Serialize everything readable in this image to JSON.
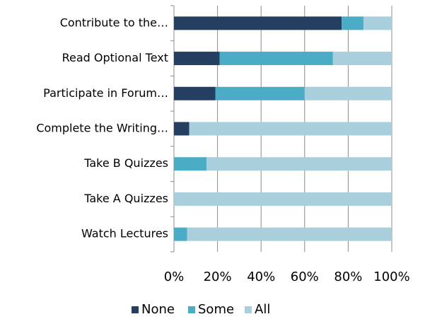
{
  "chart_data": {
    "type": "stacked_barh",
    "categories": [
      "Contribute to the…",
      "Read Optional Text",
      "Participate in Forum…",
      "Complete the Writing…",
      "Take B Quizzes",
      "Take A Quizzes",
      "Watch Lectures"
    ],
    "series": [
      {
        "name": "None",
        "color": "#243f60",
        "values": [
          77,
          21,
          19,
          7,
          0,
          0,
          0
        ]
      },
      {
        "name": "Some",
        "color": "#4bacc6",
        "values": [
          10,
          52,
          41,
          0,
          15,
          0,
          6
        ]
      },
      {
        "name": "All",
        "color": "#a9cfdc",
        "values": [
          13,
          27,
          40,
          93,
          85,
          100,
          94
        ]
      }
    ],
    "xlim": [
      0,
      100
    ],
    "xticks": [
      {
        "value": 0,
        "label": "0%"
      },
      {
        "value": 20,
        "label": "20%"
      },
      {
        "value": 40,
        "label": "40%"
      },
      {
        "value": 60,
        "label": "60%"
      },
      {
        "value": 80,
        "label": "80%"
      },
      {
        "value": 100,
        "label": "100%"
      }
    ],
    "grid": true,
    "legend": "bottom"
  }
}
